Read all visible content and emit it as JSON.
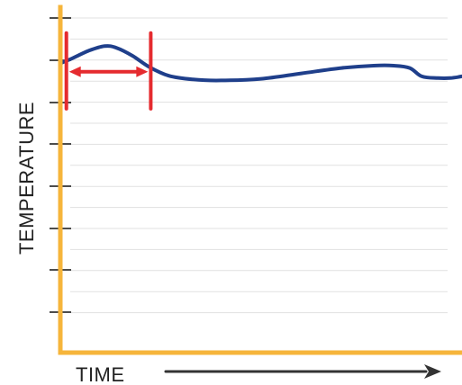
{
  "chart_data": {
    "type": "line",
    "xlabel": "TIME",
    "ylabel": "TEMPERATURE",
    "xlim": [
      0,
      100
    ],
    "ylim": [
      0,
      100
    ],
    "grid": true,
    "x_axis_arrow": true,
    "series": [
      {
        "points": [
          [
            0,
            86.0
          ],
          [
            3,
            87.5
          ],
          [
            7,
            89.7
          ],
          [
            11,
            91.1
          ],
          [
            14,
            90.6
          ],
          [
            18,
            88.2
          ],
          [
            22,
            85.0
          ],
          [
            27,
            82.3
          ],
          [
            33,
            81.2
          ],
          [
            40,
            80.9
          ],
          [
            50,
            81.4
          ],
          [
            60,
            83.0
          ],
          [
            70,
            84.6
          ],
          [
            78,
            85.3
          ],
          [
            83,
            85.3
          ],
          [
            87,
            84.6
          ],
          [
            90,
            82.1
          ],
          [
            94,
            81.6
          ],
          [
            97,
            81.6
          ],
          [
            100,
            82.1
          ]
        ]
      }
    ],
    "annotation": {
      "type": "interval",
      "x_start": 1.5,
      "x_end": 22.5,
      "y": 83.5,
      "y_extent": [
        72.5,
        95.0
      ]
    }
  },
  "colors": {
    "axis": "#f6b53b",
    "grid": "#e1e1e1",
    "tick": "#111111",
    "line": "#1f3f8b",
    "interval": "#e52b2f",
    "arrow": "#333333"
  }
}
